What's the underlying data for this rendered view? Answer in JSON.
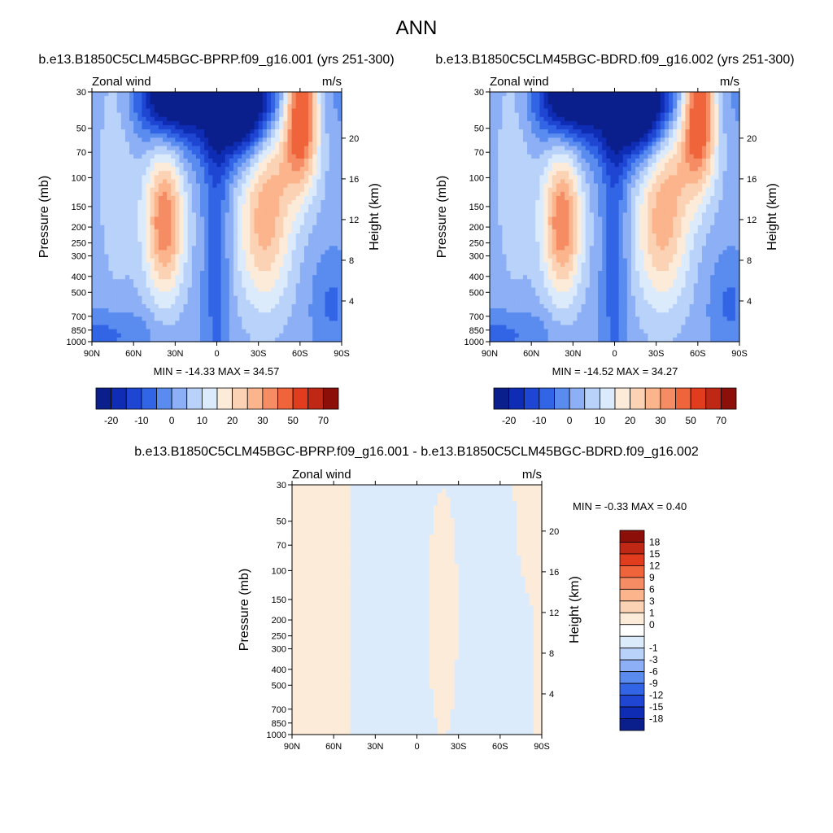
{
  "page": {
    "title": "ANN"
  },
  "chart_data": [
    {
      "type": "heatmap",
      "title": "b.e13.B1850C5CLM45BGC-BPRP.f09_g16.001 (yrs 251-300)",
      "left_label": "Zonal wind",
      "right_label": "m/s",
      "xlabel": "",
      "ylabel": "Pressure (mb)",
      "y2label": "Height (km)",
      "x_ticks": [
        "90N",
        "60N",
        "30N",
        "0",
        "30S",
        "60S",
        "90S"
      ],
      "y_ticks": [
        30,
        50,
        70,
        100,
        150,
        200,
        250,
        300,
        400,
        500,
        700,
        850,
        1000
      ],
      "y2_ticks": [
        4,
        8,
        12,
        16,
        20
      ],
      "x_range": [
        90,
        -90
      ],
      "y_range": [
        1000,
        30
      ],
      "y_scale": "log",
      "min_label": "MIN = -14.33  MAX =  34.57",
      "min": -14.33,
      "max": 34.57,
      "colorbar_labels": [
        "-20",
        "-10",
        "0",
        "10",
        "20",
        "30",
        "50",
        "70"
      ],
      "colorbar_orientation": "horizontal"
    },
    {
      "type": "heatmap",
      "title": "b.e13.B1850C5CLM45BGC-BDRD.f09_g16.002 (yrs 251-300)",
      "left_label": "Zonal wind",
      "right_label": "m/s",
      "xlabel": "",
      "ylabel": "Pressure (mb)",
      "y2label": "Height (km)",
      "x_ticks": [
        "90N",
        "60N",
        "30N",
        "0",
        "30S",
        "60S",
        "90S"
      ],
      "y_ticks": [
        30,
        50,
        70,
        100,
        150,
        200,
        250,
        300,
        400,
        500,
        700,
        850,
        1000
      ],
      "y2_ticks": [
        4,
        8,
        12,
        16,
        20
      ],
      "x_range": [
        90,
        -90
      ],
      "y_range": [
        1000,
        30
      ],
      "y_scale": "log",
      "min_label": "MIN = -14.52  MAX =  34.27",
      "min": -14.52,
      "max": 34.27,
      "colorbar_labels": [
        "-20",
        "-10",
        "0",
        "10",
        "20",
        "30",
        "50",
        "70"
      ],
      "colorbar_orientation": "horizontal"
    },
    {
      "type": "heatmap",
      "title": "b.e13.B1850C5CLM45BGC-BPRP.f09_g16.001 - b.e13.B1850C5CLM45BGC-BDRD.f09_g16.002",
      "left_label": "Zonal wind",
      "right_label": "m/s",
      "xlabel": "",
      "ylabel": "Pressure (mb)",
      "y2label": "Height (km)",
      "x_ticks": [
        "90N",
        "60N",
        "30N",
        "0",
        "30S",
        "60S",
        "90S"
      ],
      "y_ticks": [
        30,
        50,
        70,
        100,
        150,
        200,
        250,
        300,
        400,
        500,
        700,
        850,
        1000
      ],
      "y2_ticks": [
        4,
        8,
        12,
        16,
        20
      ],
      "x_range": [
        90,
        -90
      ],
      "y_range": [
        1000,
        30
      ],
      "y_scale": "log",
      "min_label": "MIN =  -0.33  MAX =   0.40",
      "min": -0.33,
      "max": 0.4,
      "colorbar_labels": [
        "18",
        "15",
        "12",
        "9",
        "6",
        "3",
        "1",
        "0",
        "-1",
        "-3",
        "-6",
        "-9",
        "-12",
        "-15",
        "-18"
      ],
      "colorbar_orientation": "vertical"
    }
  ],
  "colors": {
    "levels": [
      "#0a1e8c",
      "#0f2db4",
      "#1e46d2",
      "#3264e6",
      "#5a8cf0",
      "#8caff5",
      "#b9d2fa",
      "#dcebfc",
      "#fdebd9",
      "#fcd2b4",
      "#fbb48c",
      "#f58c64",
      "#f0643c",
      "#e13c1e",
      "#be2814",
      "#8c0f0a"
    ],
    "diff_levels": [
      "#8c0f0a",
      "#be2814",
      "#e13c1e",
      "#f0643c",
      "#f58c64",
      "#fbb48c",
      "#fcd2b4",
      "#fdebd9",
      "#ffffff",
      "#dcebfc",
      "#b9d2fa",
      "#8caff5",
      "#5a8cf0",
      "#3264e6",
      "#1e46d2",
      "#0f2db4",
      "#0a1e8c"
    ]
  }
}
